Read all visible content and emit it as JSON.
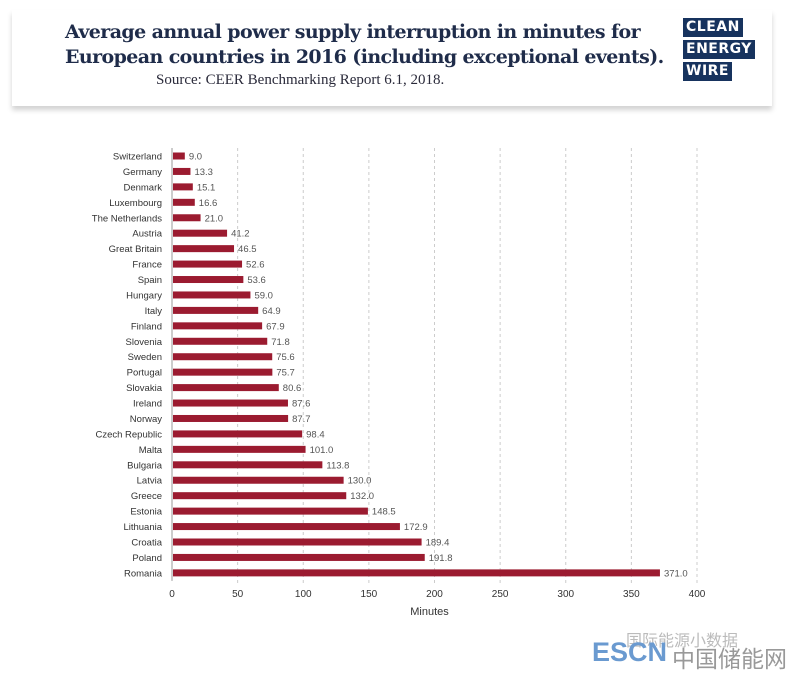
{
  "header": {
    "title_line1": "Average annual power supply interruption in minutes for",
    "title_line2": "European countries in 2016 (including exceptional events).",
    "source": "Source: CEER Benchmarking Report 6.1, 2018.",
    "logo": [
      "CLEAN",
      "ENERGY",
      "WIRE"
    ]
  },
  "watermark": {
    "line1": "国际能源小数据",
    "brand": "ESCN",
    "brand_cn": "中国储能网"
  },
  "colors": {
    "bar": "#9b1b30",
    "grid": "#cccccc",
    "title": "#1f2c4a"
  },
  "chart_data": {
    "type": "bar",
    "orientation": "horizontal",
    "title": "Average annual power supply interruption in minutes for European countries in 2016 (including exceptional events).",
    "xlabel": "Minutes",
    "ylabel": "",
    "xlim": [
      0,
      400
    ],
    "xticks": [
      0,
      50,
      100,
      150,
      200,
      250,
      300,
      350,
      400
    ],
    "grid": "vertical dashed",
    "categories": [
      "Switzerland",
      "Germany",
      "Denmark",
      "Luxembourg",
      "The Netherlands",
      "Austria",
      "Great Britain",
      "France",
      "Spain",
      "Hungary",
      "Italy",
      "Finland",
      "Slovenia",
      "Sweden",
      "Portugal",
      "Slovakia",
      "Ireland",
      "Norway",
      "Czech Republic",
      "Malta",
      "Bulgaria",
      "Latvia",
      "Greece",
      "Estonia",
      "Lithuania",
      "Croatia",
      "Poland",
      "Romania"
    ],
    "values": [
      9.0,
      13.3,
      15.1,
      16.6,
      21.0,
      41.2,
      46.5,
      52.6,
      53.6,
      59.0,
      64.9,
      67.9,
      71.8,
      75.6,
      75.7,
      80.6,
      87.6,
      87.7,
      98.4,
      101.0,
      113.8,
      130.0,
      132.0,
      148.5,
      172.9,
      189.4,
      191.8,
      371.0
    ]
  }
}
